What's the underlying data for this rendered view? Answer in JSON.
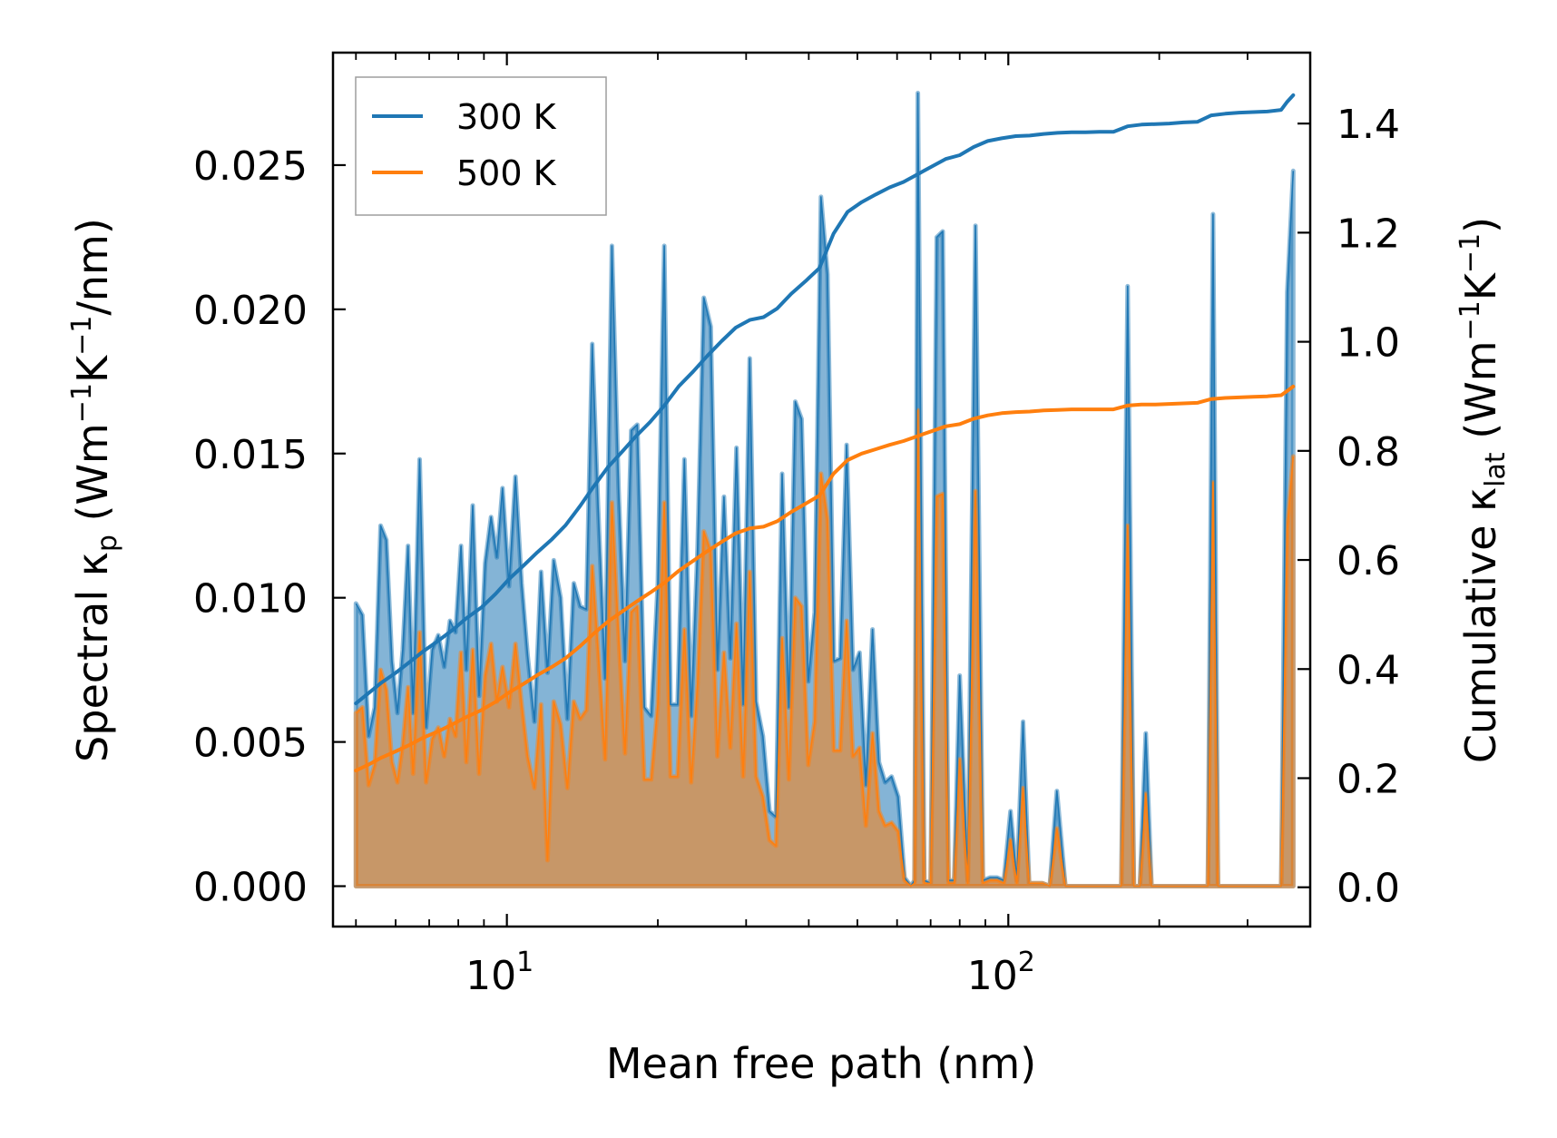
{
  "chart_data": {
    "type": "line",
    "title": "",
    "xlabel": "Mean free path (nm)",
    "xscale": "log",
    "xlim": [
      4.5,
      400
    ],
    "xticks": [
      {
        "value": 10,
        "base": "10",
        "exp": "1"
      },
      {
        "value": 100,
        "base": "10",
        "exp": "2"
      }
    ],
    "ylabel_left": {
      "pre": "Spectral κ",
      "sub": "p",
      "unit_open": " (Wm",
      "sup1": "−1",
      "mid": "K",
      "sup2": "−1",
      "unit_close": "/nm)"
    },
    "ylim_left": [
      -0.0014,
      0.0289
    ],
    "yticks_left": [
      "0.000",
      "0.005",
      "0.010",
      "0.015",
      "0.020",
      "0.025"
    ],
    "ylabel_right": {
      "pre": "Cumulative κ",
      "sub": "lat",
      "unit_open": " (Wm",
      "sup1": "−1",
      "mid": "K",
      "sup2": "−1",
      "unit_close": ")"
    },
    "ylim_right": [
      -0.072,
      1.53
    ],
    "yticks_right": [
      "0.0",
      "0.2",
      "0.4",
      "0.6",
      "0.8",
      "1.0",
      "1.2",
      "1.4"
    ],
    "legend": {
      "position": "upper left",
      "entries": [
        "300 K",
        "500 K"
      ]
    },
    "series": [
      {
        "name": "300 K",
        "color": "#1f77b4",
        "spectral_x": [
          5.0,
          5.15,
          5.3,
          5.45,
          5.6,
          5.75,
          5.9,
          6.05,
          6.2,
          6.35,
          6.5,
          6.7,
          6.9,
          7.1,
          7.3,
          7.5,
          7.7,
          7.9,
          8.1,
          8.3,
          8.55,
          8.8,
          9.05,
          9.3,
          9.55,
          9.8,
          10.1,
          10.4,
          10.7,
          11.0,
          11.35,
          11.7,
          12.05,
          12.4,
          12.8,
          13.2,
          13.6,
          14.0,
          14.4,
          14.8,
          15.2,
          15.7,
          16.2,
          16.7,
          17.2,
          17.7,
          18.2,
          18.8,
          19.4,
          20.0,
          20.6,
          21.2,
          21.9,
          22.6,
          23.3,
          24.0,
          24.7,
          25.5,
          26.3,
          27.1,
          27.9,
          28.7,
          29.6,
          30.5,
          31.4,
          32.4,
          33.4,
          34.4,
          35.4,
          36.5,
          37.6,
          38.7,
          39.9,
          41.1,
          42.3,
          43.6,
          44.9,
          46.2,
          47.6,
          49.0,
          50.5,
          52.0,
          53.6,
          55.2,
          56.8,
          58.5,
          60.3,
          62.1,
          63.9,
          65.0,
          66.0,
          68.0,
          70.0,
          72.0,
          74.0,
          76.0,
          78.0,
          80.0,
          83.0,
          86.0,
          89.0,
          92.0,
          95.0,
          98.0,
          101.0,
          104.0,
          107.0,
          110.0,
          113.0,
          117.0,
          121.0,
          125.0,
          130.0,
          168.0,
          173.0,
          178.0,
          183.0,
          188.0,
          193.0,
          250.0,
          256.0,
          262.0,
          350.0,
          360.0,
          370.0
        ],
        "spectral_y": [
          0.0098,
          0.0094,
          0.0052,
          0.0062,
          0.0125,
          0.012,
          0.0078,
          0.006,
          0.0082,
          0.0118,
          0.006,
          0.0148,
          0.0055,
          0.0082,
          0.0087,
          0.0076,
          0.0092,
          0.0088,
          0.0118,
          0.0075,
          0.0132,
          0.0066,
          0.0112,
          0.0128,
          0.0114,
          0.0138,
          0.0104,
          0.0142,
          0.0105,
          0.008,
          0.0057,
          0.0109,
          0.0074,
          0.0113,
          0.01,
          0.0058,
          0.0105,
          0.0097,
          0.0096,
          0.0188,
          0.0132,
          0.0072,
          0.0222,
          0.0138,
          0.0078,
          0.0158,
          0.016,
          0.0062,
          0.0059,
          0.0105,
          0.0222,
          0.0063,
          0.0063,
          0.0148,
          0.0059,
          0.0117,
          0.0204,
          0.0194,
          0.0075,
          0.0135,
          0.0079,
          0.0152,
          0.0063,
          0.0183,
          0.0064,
          0.0052,
          0.0026,
          0.0024,
          0.0143,
          0.0062,
          0.0168,
          0.0162,
          0.0071,
          0.0095,
          0.0239,
          0.0212,
          0.0078,
          0.0079,
          0.0153,
          0.0075,
          0.0081,
          0.0035,
          0.0089,
          0.0043,
          0.0036,
          0.0038,
          0.0031,
          0.0003,
          0.0,
          0.0002,
          0.0275,
          0.0002,
          0.0001,
          0.0225,
          0.0227,
          0.0002,
          0.0002,
          0.0073,
          0.0002,
          0.0229,
          0.0002,
          0.0003,
          0.0003,
          0.0002,
          0.0026,
          0.0002,
          0.0057,
          0.0001,
          0.0001,
          0.0001,
          0.0,
          0.0033,
          0.0,
          0.0,
          0.0208,
          0.0,
          0.0,
          0.0053,
          0.0,
          0.0,
          0.0233,
          0.0,
          0.0,
          0.0206,
          0.0248
        ],
        "cumulative_x": [
          5.0,
          5.3,
          5.6,
          6.0,
          6.4,
          6.8,
          7.3,
          7.8,
          8.3,
          8.9,
          9.5,
          10.1,
          10.8,
          11.5,
          12.3,
          13.1,
          14.0,
          14.9,
          15.9,
          17.0,
          18.1,
          19.3,
          20.6,
          22.0,
          23.5,
          25.1,
          26.8,
          28.6,
          30.5,
          32.5,
          34.6,
          36.9,
          39.4,
          42.0,
          44.8,
          47.8,
          51.0,
          54.4,
          58.0,
          61.8,
          65.9,
          70.3,
          75.0,
          80.0,
          85.3,
          91.0,
          97.0,
          103.5,
          110.3,
          117.6,
          125.4,
          133.7,
          142.6,
          152.0,
          162.1,
          172.8,
          184.3,
          196.5,
          209.5,
          223.4,
          238.2,
          254.0,
          270.8,
          288.8,
          307.9,
          328.3,
          350.0,
          360.0,
          370.0
        ],
        "cumulative_y": [
          0.337,
          0.356,
          0.374,
          0.393,
          0.413,
          0.432,
          0.452,
          0.472,
          0.493,
          0.513,
          0.538,
          0.565,
          0.59,
          0.614,
          0.638,
          0.664,
          0.699,
          0.735,
          0.77,
          0.799,
          0.827,
          0.853,
          0.883,
          0.918,
          0.945,
          0.974,
          1.001,
          1.026,
          1.04,
          1.045,
          1.061,
          1.088,
          1.111,
          1.135,
          1.198,
          1.238,
          1.256,
          1.27,
          1.283,
          1.293,
          1.307,
          1.321,
          1.335,
          1.342,
          1.357,
          1.368,
          1.373,
          1.377,
          1.378,
          1.381,
          1.383,
          1.384,
          1.384,
          1.385,
          1.385,
          1.395,
          1.398,
          1.399,
          1.4,
          1.402,
          1.403,
          1.415,
          1.418,
          1.42,
          1.421,
          1.422,
          1.425,
          1.44,
          1.452
        ]
      },
      {
        "name": "500 K",
        "color": "#ff7f0e",
        "spectral_x": [
          5.0,
          5.15,
          5.3,
          5.45,
          5.6,
          5.75,
          5.9,
          6.05,
          6.2,
          6.35,
          6.5,
          6.7,
          6.9,
          7.1,
          7.3,
          7.5,
          7.7,
          7.9,
          8.1,
          8.3,
          8.55,
          8.8,
          9.05,
          9.3,
          9.55,
          9.8,
          10.1,
          10.4,
          10.7,
          11.0,
          11.35,
          11.7,
          12.05,
          12.4,
          12.8,
          13.2,
          13.6,
          14.0,
          14.4,
          14.8,
          15.2,
          15.7,
          16.2,
          16.7,
          17.2,
          17.7,
          18.2,
          18.8,
          19.4,
          20.0,
          20.6,
          21.2,
          21.9,
          22.6,
          23.3,
          24.0,
          24.7,
          25.5,
          26.3,
          27.1,
          27.9,
          28.7,
          29.6,
          30.5,
          31.4,
          32.4,
          33.4,
          34.4,
          35.4,
          36.5,
          37.6,
          38.7,
          39.9,
          41.1,
          42.3,
          43.6,
          44.9,
          46.2,
          47.6,
          49.0,
          50.5,
          52.0,
          53.6,
          55.2,
          56.8,
          58.5,
          60.3,
          62.1,
          63.9,
          65.0,
          66.0,
          68.0,
          70.0,
          72.0,
          74.0,
          76.0,
          78.0,
          80.0,
          83.0,
          86.0,
          89.0,
          92.0,
          95.0,
          98.0,
          101.0,
          104.0,
          107.0,
          110.0,
          113.0,
          117.0,
          121.0,
          125.0,
          130.0,
          168.0,
          173.0,
          178.0,
          183.0,
          188.0,
          193.0,
          250.0,
          256.0,
          262.0,
          350.0,
          360.0,
          370.0
        ],
        "spectral_y": [
          0.006,
          0.0062,
          0.0035,
          0.0042,
          0.0075,
          0.0068,
          0.0043,
          0.0036,
          0.0049,
          0.0069,
          0.0039,
          0.0088,
          0.0036,
          0.0051,
          0.0055,
          0.0045,
          0.0058,
          0.0052,
          0.0081,
          0.0043,
          0.0082,
          0.0039,
          0.0073,
          0.0084,
          0.0064,
          0.0076,
          0.0062,
          0.0084,
          0.0063,
          0.0045,
          0.0034,
          0.0063,
          0.0009,
          0.0064,
          0.0056,
          0.0034,
          0.0064,
          0.0058,
          0.0061,
          0.0111,
          0.0082,
          0.0044,
          0.0133,
          0.0087,
          0.0046,
          0.0095,
          0.0097,
          0.0037,
          0.0037,
          0.0063,
          0.0133,
          0.0038,
          0.0038,
          0.0089,
          0.0036,
          0.007,
          0.0123,
          0.0116,
          0.0045,
          0.0081,
          0.0048,
          0.0091,
          0.0038,
          0.0109,
          0.0038,
          0.0031,
          0.0016,
          0.0014,
          0.0086,
          0.0037,
          0.01,
          0.0097,
          0.0042,
          0.0057,
          0.0143,
          0.0127,
          0.0047,
          0.0047,
          0.0092,
          0.0045,
          0.0048,
          0.0021,
          0.0053,
          0.0026,
          0.0021,
          0.0022,
          0.0019,
          0.0002,
          0.0,
          0.0001,
          0.0165,
          0.0001,
          0.0001,
          0.0135,
          0.0136,
          0.0001,
          0.0001,
          0.0044,
          0.0001,
          0.0137,
          0.0001,
          0.0002,
          0.0002,
          0.0001,
          0.0016,
          0.0001,
          0.0034,
          0.0001,
          0.0001,
          0.0001,
          0.0,
          0.002,
          0.0,
          0.0,
          0.0125,
          0.0,
          0.0,
          0.0032,
          0.0,
          0.0,
          0.014,
          0.0,
          0.0,
          0.0124,
          0.0149
        ],
        "cumulative_x": [
          5.0,
          5.3,
          5.6,
          6.0,
          6.4,
          6.8,
          7.3,
          7.8,
          8.3,
          8.9,
          9.5,
          10.1,
          10.8,
          11.5,
          12.3,
          13.1,
          14.0,
          14.9,
          15.9,
          17.0,
          18.1,
          19.3,
          20.6,
          22.0,
          23.5,
          25.1,
          26.8,
          28.6,
          30.5,
          32.5,
          34.6,
          36.9,
          39.4,
          42.0,
          44.8,
          47.8,
          51.0,
          54.4,
          58.0,
          61.8,
          65.9,
          70.3,
          75.0,
          80.0,
          85.3,
          91.0,
          97.0,
          103.5,
          110.3,
          117.6,
          125.4,
          133.7,
          142.6,
          152.0,
          162.1,
          172.8,
          184.3,
          196.5,
          209.5,
          223.4,
          238.2,
          254.0,
          270.8,
          288.8,
          307.9,
          328.3,
          350.0,
          360.0,
          370.0
        ],
        "cumulative_y": [
          0.214,
          0.225,
          0.237,
          0.249,
          0.261,
          0.274,
          0.286,
          0.299,
          0.312,
          0.325,
          0.34,
          0.357,
          0.373,
          0.389,
          0.404,
          0.42,
          0.442,
          0.465,
          0.487,
          0.506,
          0.523,
          0.54,
          0.558,
          0.58,
          0.598,
          0.616,
          0.633,
          0.649,
          0.658,
          0.661,
          0.671,
          0.688,
          0.703,
          0.718,
          0.758,
          0.783,
          0.795,
          0.803,
          0.811,
          0.818,
          0.827,
          0.836,
          0.845,
          0.849,
          0.859,
          0.865,
          0.869,
          0.871,
          0.872,
          0.874,
          0.875,
          0.876,
          0.876,
          0.876,
          0.876,
          0.883,
          0.885,
          0.885,
          0.886,
          0.887,
          0.888,
          0.895,
          0.897,
          0.898,
          0.899,
          0.9,
          0.902,
          0.91,
          0.918
        ]
      }
    ]
  }
}
